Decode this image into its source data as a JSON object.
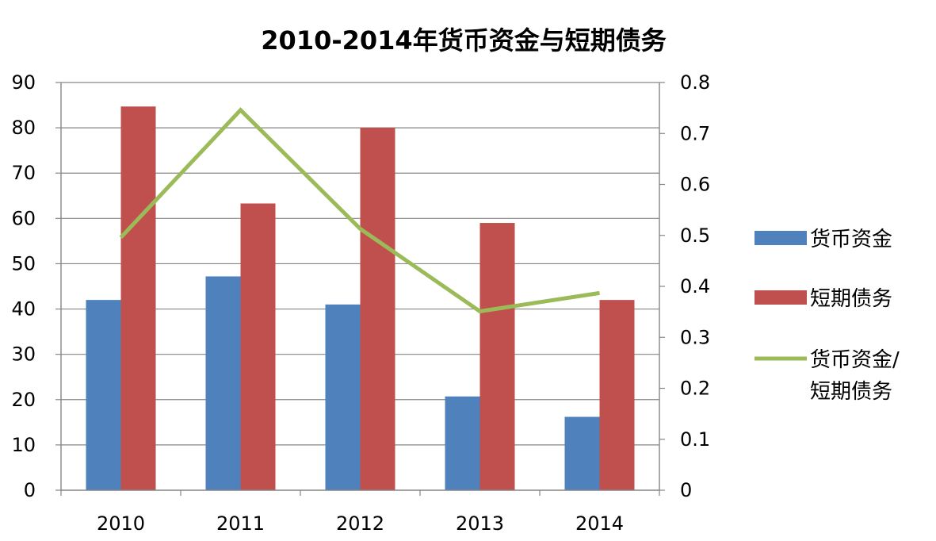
{
  "chart_data": {
    "type": "bar",
    "title": "2010-2014年货币资金与短期债务",
    "categories": [
      "2010",
      "2011",
      "2012",
      "2013",
      "2014"
    ],
    "series": [
      {
        "name": "货币资金",
        "type": "bar",
        "axis": "left",
        "color": "#4f81bd",
        "values": [
          42,
          47.2,
          41,
          20.7,
          16.2
        ]
      },
      {
        "name": "短期债务",
        "type": "bar",
        "axis": "left",
        "color": "#c0504d",
        "values": [
          84.7,
          63.3,
          80,
          59,
          42
        ]
      },
      {
        "name": "货币资金/短期债务",
        "type": "line",
        "axis": "right",
        "color": "#9bbb59",
        "values": [
          0.496,
          0.746,
          0.513,
          0.351,
          0.387
        ]
      }
    ],
    "y_left": {
      "min": 0,
      "max": 90,
      "step": 10,
      "ticks": [
        "0",
        "10",
        "20",
        "30",
        "40",
        "50",
        "60",
        "70",
        "80",
        "90"
      ]
    },
    "y_right": {
      "min": 0,
      "max": 0.8,
      "step": 0.1,
      "ticks": [
        "0",
        "0.1",
        "0.2",
        "0.3",
        "0.4",
        "0.5",
        "0.6",
        "0.7",
        "0.8"
      ]
    },
    "grid": true,
    "legend_position": "right",
    "legend": [
      {
        "label_lines": [
          "货币资金"
        ],
        "color": "#4f81bd",
        "marker": "bar"
      },
      {
        "label_lines": [
          "短期债务"
        ],
        "color": "#c0504d",
        "marker": "bar"
      },
      {
        "label_lines": [
          "货币资金/",
          "短期债务"
        ],
        "color": "#9bbb59",
        "marker": "line"
      }
    ]
  }
}
